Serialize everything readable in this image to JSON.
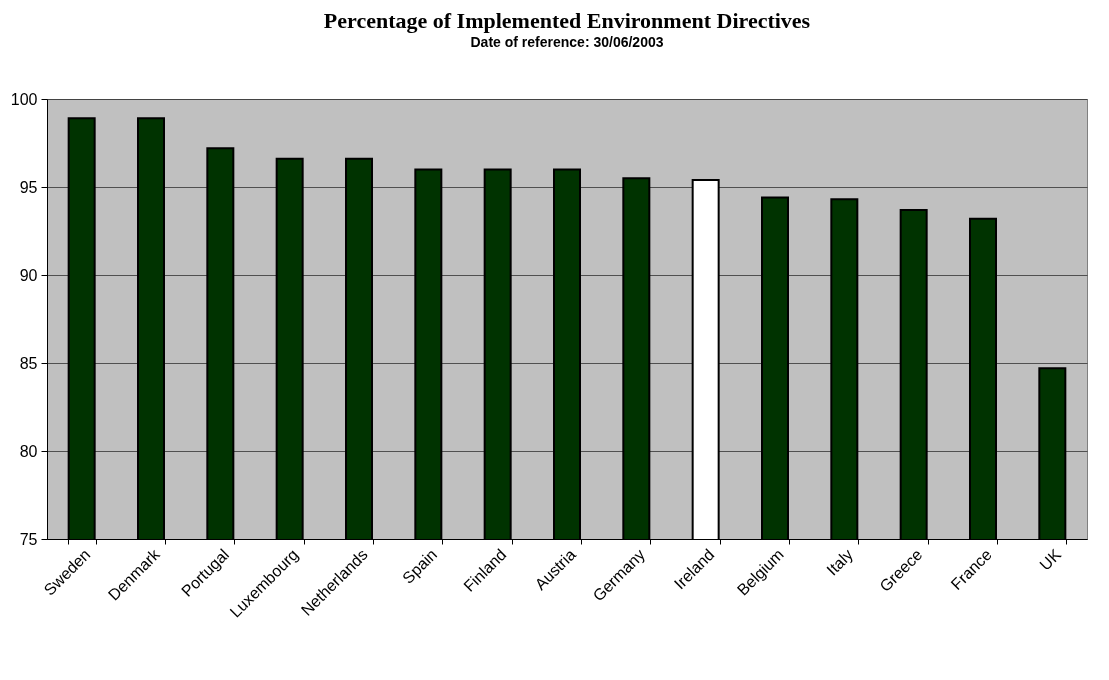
{
  "chart_data": {
    "type": "bar",
    "title": "Percentage of Implemented Environment Directives",
    "subtitle": "Date of reference: 30/06/2003",
    "categories": [
      "Sweden",
      "Denmark",
      "Portugal",
      "Luxembourg",
      "Netherlands",
      "Spain",
      "Finland",
      "Austria",
      "Germany",
      "Ireland",
      "Belgium",
      "Italy",
      "Greece",
      "France",
      "UK"
    ],
    "values": [
      98.9,
      98.9,
      97.2,
      96.6,
      96.6,
      96.0,
      96.0,
      96.0,
      95.5,
      95.4,
      94.4,
      94.3,
      93.7,
      93.2,
      84.7
    ],
    "colors": [
      "#003300",
      "#003300",
      "#003300",
      "#003300",
      "#003300",
      "#003300",
      "#003300",
      "#003300",
      "#003300",
      "#ffffff",
      "#003300",
      "#003300",
      "#003300",
      "#003300",
      "#003300"
    ],
    "ylim": [
      75,
      100
    ],
    "yticks": [
      75,
      80,
      85,
      90,
      95,
      100
    ],
    "grid": "y"
  }
}
